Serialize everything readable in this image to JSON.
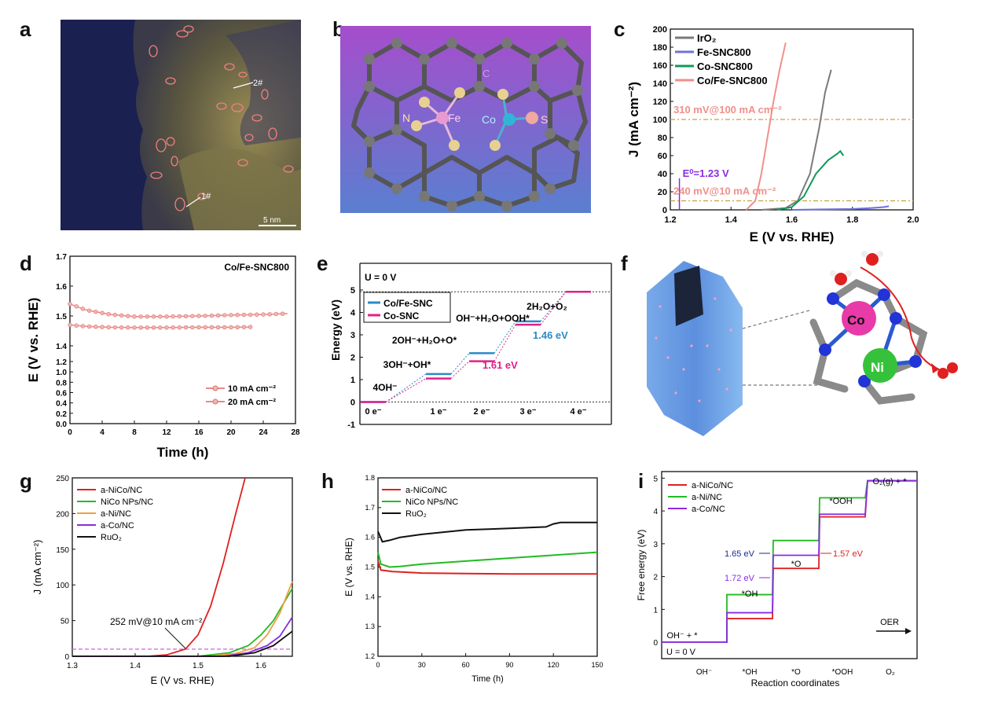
{
  "panels": {
    "a": "a",
    "b": "b",
    "c": "c",
    "d": "d",
    "e": "e",
    "f": "f",
    "g": "g",
    "h": "h",
    "i": "i"
  },
  "colors": {
    "red": "#e02020",
    "green": "#22bb22",
    "orange": "#f0a040",
    "purple": "#8a2be2",
    "black": "#111111",
    "salmon": "#f0908a",
    "gray": "#7a7a7a",
    "blue": "#7070e0",
    "dgreen": "#10995a",
    "teal": "#2b8ac6",
    "magenta": "#e0208a"
  },
  "stem": {
    "markers": [
      "2#",
      "1#"
    ],
    "scalebar": "5 nm"
  },
  "structure": {
    "atoms": [
      "C",
      "N",
      "Fe",
      "Co",
      "S"
    ]
  },
  "structure_f": {
    "atoms": [
      "Co",
      "Ni"
    ]
  },
  "chart_data": [
    {
      "id": "c",
      "type": "line",
      "xlabel": "E (V vs. RHE)",
      "ylabel": "J (mA cm⁻²)",
      "xlim": [
        1.2,
        2.0
      ],
      "ylim": [
        0,
        200
      ],
      "xticks": [
        "1.2",
        "1.4",
        "1.6",
        "1.8",
        "2.0"
      ],
      "yticks": [
        "0",
        "20",
        "40",
        "60",
        "80",
        "100",
        "120",
        "140",
        "160",
        "180",
        "200"
      ],
      "legend": [
        "IrO₂",
        "Fe-SNC800",
        "Co-SNC800",
        "Co/Fe-SNC800"
      ],
      "series": [
        {
          "name": "IrO₂",
          "color": "#7a7a7a",
          "x": [
            1.5,
            1.58,
            1.62,
            1.66,
            1.69,
            1.71,
            1.73
          ],
          "y": [
            0,
            2,
            10,
            40,
            90,
            130,
            155
          ]
        },
        {
          "name": "Fe-SNC800",
          "color": "#7070e0",
          "x": [
            1.6,
            1.7,
            1.8,
            1.86,
            1.9,
            1.92
          ],
          "y": [
            0,
            0.5,
            1,
            2,
            3,
            4
          ]
        },
        {
          "name": "Co-SNC800",
          "color": "#10995a",
          "x": [
            1.55,
            1.6,
            1.64,
            1.68,
            1.72,
            1.75,
            1.76,
            1.77
          ],
          "y": [
            0,
            3,
            15,
            40,
            55,
            62,
            65,
            60
          ]
        },
        {
          "name": "Co/Fe-SNC800",
          "color": "#f0908a",
          "x": [
            1.45,
            1.48,
            1.5,
            1.52,
            1.54,
            1.56,
            1.58
          ],
          "y": [
            0,
            10,
            40,
            80,
            120,
            155,
            185
          ]
        }
      ],
      "annotations": [
        "310 mV@100 mA cm⁻²",
        "240 mV@10 mA cm⁻²",
        "E⁰=1.23 V"
      ]
    },
    {
      "id": "d",
      "type": "line",
      "title": "Co/Fe-SNC800",
      "xlabel": "Time (h)",
      "ylabel": "E (V vs. RHE)",
      "xlim": [
        0,
        28
      ],
      "xticks": [
        "0",
        "4",
        "8",
        "12",
        "16",
        "20",
        "24",
        "28"
      ],
      "yticks": [
        "0.0",
        "0.2",
        "0.4",
        "0.6",
        "0.8",
        "1.0",
        "1.2",
        "1.4",
        "1.5",
        "1.6",
        "1.7"
      ],
      "legend": [
        "10 mA cm⁻²",
        "20 mA cm⁻²"
      ],
      "series": [
        {
          "name": "20 mA cm⁻²",
          "x": [
            0,
            2,
            5,
            8,
            12,
            16,
            20,
            24,
            27
          ],
          "y": [
            1.54,
            1.52,
            1.505,
            1.498,
            1.498,
            1.5,
            1.503,
            1.505,
            1.508
          ]
        },
        {
          "name": "10 mA cm⁻²",
          "x": [
            0,
            2,
            5,
            8,
            12,
            16,
            20,
            22.5
          ],
          "y": [
            1.47,
            1.465,
            1.462,
            1.461,
            1.461,
            1.462,
            1.462,
            1.463
          ]
        }
      ]
    },
    {
      "id": "e",
      "type": "line",
      "title": "U = 0 V",
      "xlabel": "",
      "ylabel": "Energy (eV)",
      "ylim": [
        -1,
        5
      ],
      "xticks": [
        "0 e⁻",
        "1 e⁻",
        "2 e⁻",
        "3 e⁻",
        "4 e⁻"
      ],
      "yticks": [
        "-1",
        "0",
        "1",
        "2",
        "3",
        "4",
        "5"
      ],
      "legend": [
        "Co/Fe-SNC",
        "Co-SNC"
      ],
      "steps": [
        "4OH⁻",
        "3OH⁻+OH*",
        "2OH⁻+H₂O+O*",
        "OH⁻+H₂O+OOH*",
        "2H₂O+O₂"
      ],
      "series": [
        {
          "name": "Co/Fe-SNC",
          "values": [
            0,
            1.25,
            2.18,
            3.6,
            4.92
          ]
        },
        {
          "name": "Co-SNC",
          "values": [
            0,
            1.05,
            1.82,
            3.45,
            4.92
          ]
        }
      ],
      "annotations": [
        "1.46 eV",
        "1.61 eV"
      ]
    },
    {
      "id": "g",
      "type": "line",
      "xlabel": "E (V vs. RHE)",
      "ylabel": "J (mA cm⁻²)",
      "xlim": [
        1.3,
        1.65
      ],
      "ylim": [
        0,
        250
      ],
      "xticks": [
        "1.3",
        "1.4",
        "1.5",
        "1.6"
      ],
      "yticks": [
        "0",
        "50",
        "100",
        "150",
        "200",
        "250"
      ],
      "legend": [
        "a-NiCo/NC",
        "NiCo NPs/NC",
        "a-Ni/NC",
        "a-Co/NC",
        "RuO₂"
      ],
      "series": [
        {
          "name": "a-NiCo/NC",
          "x": [
            1.3,
            1.42,
            1.45,
            1.48,
            1.5,
            1.52,
            1.54,
            1.56,
            1.575
          ],
          "y": [
            0,
            0,
            2,
            10,
            30,
            70,
            130,
            200,
            250
          ]
        },
        {
          "name": "NiCo NPs/NC",
          "x": [
            1.3,
            1.5,
            1.55,
            1.58,
            1.6,
            1.62,
            1.65
          ],
          "y": [
            0,
            0,
            5,
            15,
            30,
            50,
            95
          ]
        },
        {
          "name": "a-Ni/NC",
          "x": [
            1.3,
            1.52,
            1.56,
            1.59,
            1.61,
            1.63,
            1.65
          ],
          "y": [
            0,
            0,
            4,
            12,
            30,
            60,
            105
          ]
        },
        {
          "name": "a-Co/NC",
          "x": [
            1.3,
            1.54,
            1.58,
            1.61,
            1.63,
            1.65
          ],
          "y": [
            0,
            0,
            5,
            15,
            28,
            55
          ]
        },
        {
          "name": "RuO₂",
          "x": [
            1.3,
            1.55,
            1.59,
            1.62,
            1.65
          ],
          "y": [
            0,
            0,
            5,
            15,
            35
          ]
        }
      ],
      "annotations": [
        "252 mV@10 mA cm⁻²"
      ]
    },
    {
      "id": "h",
      "type": "line",
      "xlabel": "Time (h)",
      "ylabel": "E (V vs. RHE)",
      "xlim": [
        0,
        150
      ],
      "ylim": [
        1.2,
        1.8
      ],
      "xticks": [
        "0",
        "30",
        "60",
        "90",
        "120",
        "150"
      ],
      "yticks": [
        "1.2",
        "1.3",
        "1.4",
        "1.5",
        "1.6",
        "1.7",
        "1.8"
      ],
      "legend": [
        "a-NiCo/NC",
        "NiCo NPs/NC",
        "RuO₂"
      ],
      "series": [
        {
          "name": "a-NiCo/NC",
          "x": [
            0,
            2,
            10,
            30,
            60,
            90,
            120,
            150
          ],
          "y": [
            1.52,
            1.49,
            1.485,
            1.48,
            1.478,
            1.477,
            1.477,
            1.477
          ]
        },
        {
          "name": "NiCo NPs/NC",
          "x": [
            0,
            2,
            8,
            15,
            30,
            60,
            90,
            120,
            150
          ],
          "y": [
            1.55,
            1.51,
            1.5,
            1.502,
            1.51,
            1.52,
            1.53,
            1.54,
            1.55
          ]
        },
        {
          "name": "RuO₂",
          "x": [
            0,
            3,
            8,
            15,
            30,
            60,
            90,
            115,
            120,
            125,
            150
          ],
          "y": [
            1.62,
            1.585,
            1.59,
            1.6,
            1.61,
            1.625,
            1.63,
            1.635,
            1.645,
            1.65,
            1.65
          ]
        }
      ]
    },
    {
      "id": "i",
      "type": "line",
      "xlabel": "Reaction coordinates",
      "ylabel": "Free energy (eV)",
      "ylim": [
        -0.5,
        5.2
      ],
      "xticks": [
        "OH⁻",
        "*OH",
        "*O",
        "*OOH",
        "O₂"
      ],
      "yticks": [
        "0",
        "1",
        "2",
        "3",
        "4",
        "5"
      ],
      "legend": [
        "a-NiCo/NC",
        "a-Ni/NC",
        "a-Co/NC"
      ],
      "step_labels": [
        "OH⁻ + *",
        "*OH",
        "*O",
        "*OOH",
        "O₂(g) + *"
      ],
      "series": [
        {
          "name": "a-NiCo/NC",
          "values": [
            0,
            0.72,
            2.25,
            3.82,
            4.92
          ]
        },
        {
          "name": "a-Ni/NC",
          "values": [
            0,
            1.45,
            3.1,
            4.4,
            4.92
          ]
        },
        {
          "name": "a-Co/NC",
          "values": [
            0,
            0.9,
            2.65,
            3.9,
            4.92
          ]
        }
      ],
      "annotations": [
        "U = 0 V",
        "1.65 eV",
        "1.72 eV",
        "1.57 eV",
        "OER"
      ]
    }
  ]
}
